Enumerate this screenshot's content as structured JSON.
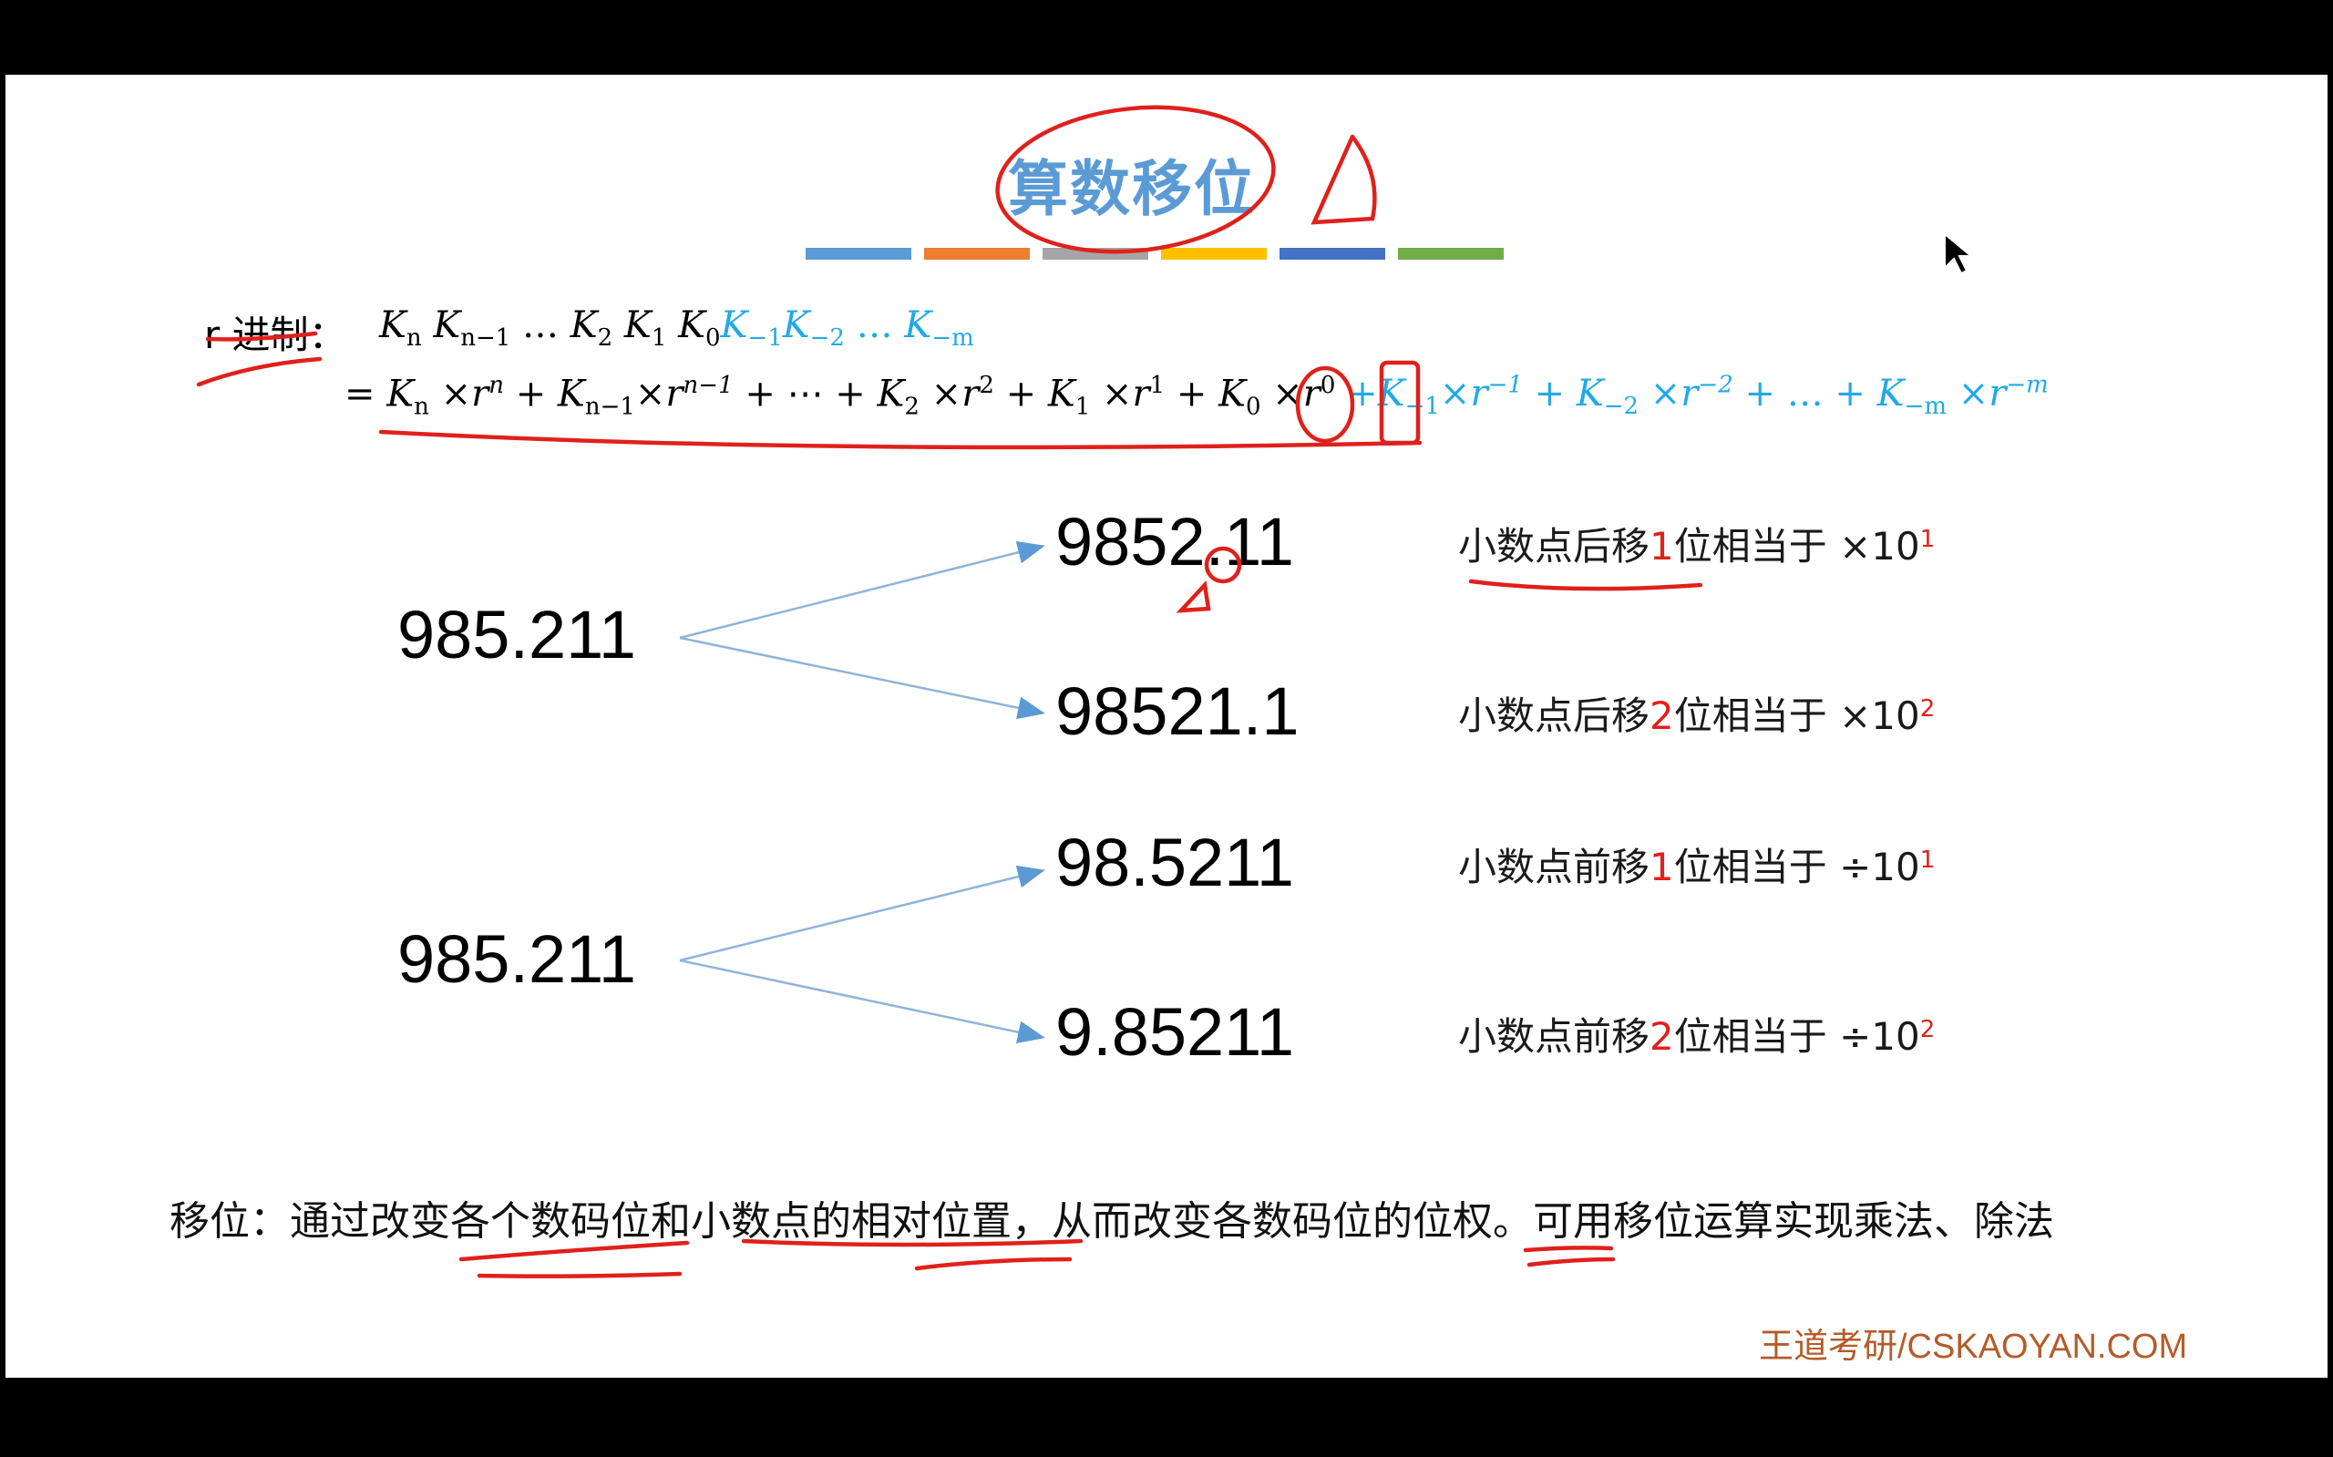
{
  "title": "算数移位",
  "accent_bars": [
    "#5b9bd5",
    "#ed7d31",
    "#a5a5a5",
    "#ffc000",
    "#4472c4",
    "#70ad47"
  ],
  "formula": {
    "label": "r 进制：",
    "line1_black": "K",
    "eq": "="
  },
  "shifts": [
    {
      "source": "985.211",
      "target": "9852.11",
      "note_pre": "小数点后移",
      "note_n": "1",
      "note_post": "位相当于 ×10",
      "exp": "1"
    },
    {
      "source": "985.211",
      "target": "98521.1",
      "note_pre": "小数点后移",
      "note_n": "2",
      "note_post": "位相当于 ×10",
      "exp": "2"
    },
    {
      "source": "985.211",
      "target": "98.5211",
      "note_pre": "小数点前移",
      "note_n": "1",
      "note_post": "位相当于 ÷10",
      "exp": "1"
    },
    {
      "source": "985.211",
      "target": "9.85211",
      "note_pre": "小数点前移",
      "note_n": "2",
      "note_post": "位相当于 ÷10",
      "exp": "2"
    }
  ],
  "summary": "移位：通过改变各个数码位和小数点的相对位置，从而改变各数码位的位权。可用移位运算实现乘法、除法",
  "footer": "王道考研/CSKAOYAN.COM",
  "colors": {
    "title": "#5b9bd5",
    "blue_terms": "#22a9e6",
    "annotation": "#e0201c",
    "footer": "#b35b2a"
  }
}
